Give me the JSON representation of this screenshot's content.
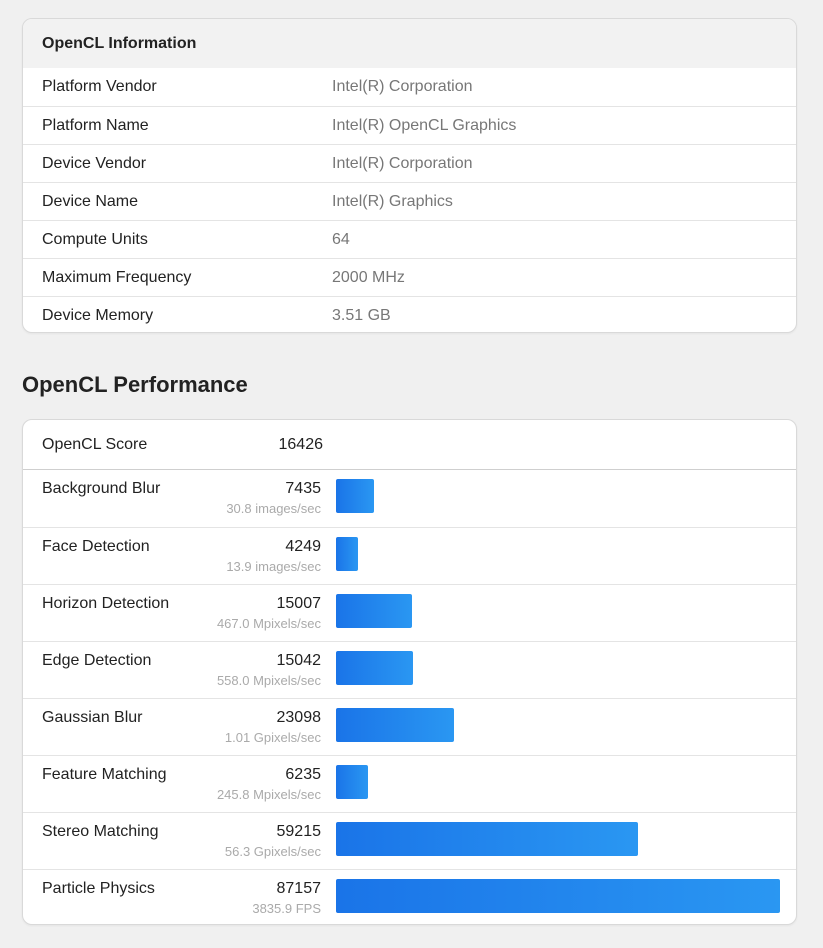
{
  "opencl_info": {
    "title": "OpenCL Information",
    "rows": [
      {
        "label": "Platform Vendor",
        "value": "Intel(R) Corporation"
      },
      {
        "label": "Platform Name",
        "value": "Intel(R) OpenCL Graphics"
      },
      {
        "label": "Device Vendor",
        "value": "Intel(R) Corporation"
      },
      {
        "label": "Device Name",
        "value": "Intel(R) Graphics"
      },
      {
        "label": "Compute Units",
        "value": "64"
      },
      {
        "label": "Maximum Frequency",
        "value": "2000 MHz"
      },
      {
        "label": "Device Memory",
        "value": "3.51 GB"
      }
    ]
  },
  "performance": {
    "title": "OpenCL Performance",
    "score_label": "OpenCL Score",
    "score_value": "16426",
    "max_score": 87157,
    "bar_color": "#1a74e8",
    "tests": [
      {
        "name": "Background Blur",
        "score": "7435",
        "rate": "30.8 images/sec"
      },
      {
        "name": "Face Detection",
        "score": "4249",
        "rate": "13.9 images/sec"
      },
      {
        "name": "Horizon Detection",
        "score": "15007",
        "rate": "467.0 Mpixels/sec"
      },
      {
        "name": "Edge Detection",
        "score": "15042",
        "rate": "558.0 Mpixels/sec"
      },
      {
        "name": "Gaussian Blur",
        "score": "23098",
        "rate": "1.01 Gpixels/sec"
      },
      {
        "name": "Feature Matching",
        "score": "6235",
        "rate": "245.8 Mpixels/sec"
      },
      {
        "name": "Stereo Matching",
        "score": "59215",
        "rate": "56.3 Gpixels/sec"
      },
      {
        "name": "Particle Physics",
        "score": "87157",
        "rate": "3835.9 FPS"
      }
    ]
  }
}
